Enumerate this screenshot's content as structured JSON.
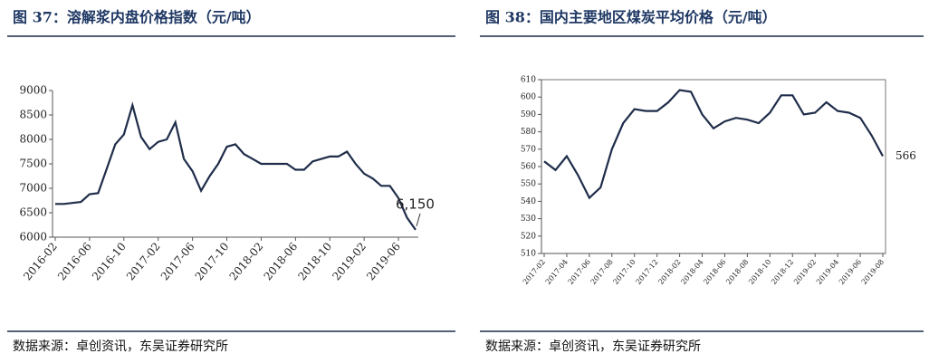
{
  "chart_data": [
    {
      "type": "line",
      "title": "图 37：溶解浆内盘价格指数（元/吨）",
      "source": "数据来源：卓创资讯，东吴证券研究所",
      "categories": [
        "2016-02",
        null,
        null,
        null,
        "2016-06",
        null,
        null,
        null,
        "2016-10",
        null,
        null,
        null,
        "2017-02",
        null,
        null,
        null,
        "2017-06",
        null,
        null,
        null,
        "2017-10",
        null,
        null,
        null,
        "2018-02",
        null,
        null,
        null,
        "2018-06",
        null,
        null,
        null,
        "2018-10",
        null,
        null,
        null,
        "2019-02",
        null,
        null,
        null,
        "2019-06",
        null,
        null
      ],
      "values": [
        6680,
        6680,
        6700,
        6720,
        6880,
        6900,
        7400,
        7900,
        8100,
        8700,
        8050,
        7800,
        7950,
        8000,
        8350,
        7600,
        7350,
        6950,
        7250,
        7500,
        7850,
        7900,
        7700,
        7600,
        7500,
        7500,
        7500,
        7500,
        7380,
        7380,
        7550,
        7600,
        7650,
        7650,
        7750,
        7500,
        7300,
        7200,
        7050,
        7050,
        6800,
        6400,
        6150
      ],
      "value_labels": [
        null,
        null,
        null,
        null,
        null,
        null,
        null,
        null,
        null,
        null,
        null,
        null,
        null,
        null,
        null,
        null,
        null,
        null,
        null,
        null,
        null,
        null,
        null,
        null,
        null,
        null,
        null,
        null,
        null,
        null,
        null,
        null,
        null,
        null,
        null,
        null,
        null,
        null,
        null,
        null,
        null,
        null,
        "6,150"
      ],
      "label_last": true,
      "color": "#1f2d4a",
      "ylim": [
        6000,
        9000
      ],
      "yticks": [
        6000,
        6500,
        7000,
        7500,
        8000,
        8500,
        9000
      ],
      "frame": false
    },
    {
      "type": "line",
      "title": "图 38：国内主要地区煤炭平均价格（元/吨）",
      "source": "数据来源：卓创资讯，东吴证券研究所",
      "categories": [
        "2017-02",
        null,
        "2017-04",
        null,
        "2017-06",
        null,
        "2017-08",
        null,
        "2017-10",
        null,
        "2017-12",
        null,
        "2018-02",
        null,
        "2018-04",
        null,
        "2018-06",
        null,
        "2018-08",
        null,
        "2018-10",
        null,
        "2018-12",
        null,
        "2019-02",
        null,
        "2019-04",
        null,
        "2019-06",
        null,
        "2019-08"
      ],
      "values": [
        563,
        558,
        566,
        555,
        542,
        548,
        570,
        585,
        593,
        592,
        592,
        597,
        604,
        603,
        590,
        582,
        586,
        588,
        587,
        585,
        591,
        601,
        601,
        590,
        591,
        597,
        592,
        591,
        588,
        578,
        566
      ],
      "label_last": true,
      "color": "#1f2d4a",
      "ylim": [
        510,
        610
      ],
      "yticks": [
        510,
        520,
        530,
        540,
        550,
        560,
        570,
        580,
        590,
        600,
        610
      ],
      "frame": true
    }
  ]
}
